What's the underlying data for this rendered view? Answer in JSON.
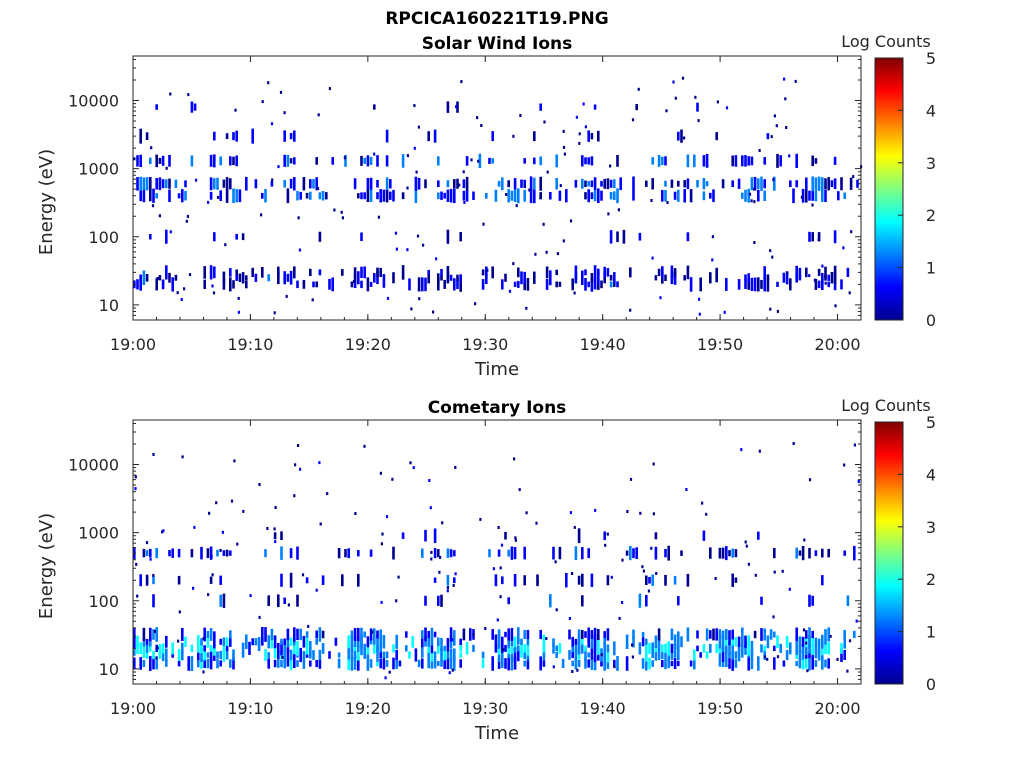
{
  "figure_title": "RPCICA160221T19.PNG",
  "colors": {
    "axis": "#262626"
  },
  "colormap": [
    "#00008f",
    "#0000ff",
    "#0080ff",
    "#00ffff",
    "#80ff80",
    "#ffff00",
    "#ff8000",
    "#ff0000",
    "#800000"
  ],
  "chart_data": [
    {
      "type": "heatmap",
      "title": "Solar Wind Ions",
      "xlabel": "Time",
      "ylabel": "Energy (eV)",
      "y_scale": "log",
      "ylim": [
        6,
        45000
      ],
      "xlim": [
        "19:00",
        "20:02"
      ],
      "x_ticks": [
        "19:00",
        "19:10",
        "19:20",
        "19:30",
        "19:40",
        "19:50",
        "20:00"
      ],
      "y_ticks": [
        10,
        100,
        1000,
        10000
      ],
      "y_tick_labels": [
        "10",
        "100",
        "1000",
        "10000"
      ],
      "colorbar": {
        "label": "Log Counts",
        "range": [
          0,
          5
        ],
        "ticks": [
          "0",
          "1",
          "2",
          "3",
          "4",
          "5"
        ]
      },
      "energy_bands": [
        {
          "energy_eV": 20,
          "level": 0.3,
          "occupancy": 0.35
        },
        {
          "energy_eV": 25,
          "level": 0.3,
          "occupancy": 0.3
        },
        {
          "energy_eV": 30,
          "level": 0.2,
          "occupancy": 0.2
        },
        {
          "energy_eV": 100,
          "level": 0.2,
          "occupancy": 0.08
        },
        {
          "energy_eV": 400,
          "level": 0.6,
          "occupancy": 0.45
        },
        {
          "energy_eV": 600,
          "level": 0.6,
          "occupancy": 0.45
        },
        {
          "energy_eV": 1300,
          "level": 0.6,
          "occupancy": 0.35
        },
        {
          "energy_eV": 3000,
          "level": 0.2,
          "occupancy": 0.1
        },
        {
          "energy_eV": 8000,
          "level": 0.2,
          "occupancy": 0.05
        }
      ]
    },
    {
      "type": "heatmap",
      "title": "Cometary Ions",
      "xlabel": "Time",
      "ylabel": "Energy (eV)",
      "y_scale": "log",
      "ylim": [
        6,
        45000
      ],
      "xlim": [
        "19:00",
        "20:02"
      ],
      "x_ticks": [
        "19:00",
        "19:10",
        "19:20",
        "19:30",
        "19:40",
        "19:50",
        "20:00"
      ],
      "y_ticks": [
        10,
        100,
        1000,
        10000
      ],
      "y_tick_labels": [
        "10",
        "100",
        "1000",
        "10000"
      ],
      "colorbar": {
        "label": "Log Counts",
        "range": [
          0,
          5
        ],
        "ticks": [
          "0",
          "1",
          "2",
          "3",
          "4",
          "5"
        ]
      },
      "energy_bands": [
        {
          "energy_eV": 12,
          "level": 0.9,
          "occupancy": 0.55
        },
        {
          "energy_eV": 16,
          "level": 1.1,
          "occupancy": 0.6
        },
        {
          "energy_eV": 20,
          "level": 1.3,
          "occupancy": 0.6
        },
        {
          "energy_eV": 25,
          "level": 1.1,
          "occupancy": 0.55
        },
        {
          "energy_eV": 32,
          "level": 0.7,
          "occupancy": 0.4
        },
        {
          "energy_eV": 100,
          "level": 0.3,
          "occupancy": 0.15
        },
        {
          "energy_eV": 200,
          "level": 0.3,
          "occupancy": 0.15
        },
        {
          "energy_eV": 500,
          "level": 0.4,
          "occupancy": 0.35
        },
        {
          "energy_eV": 900,
          "level": 0.2,
          "occupancy": 0.05
        }
      ]
    }
  ]
}
